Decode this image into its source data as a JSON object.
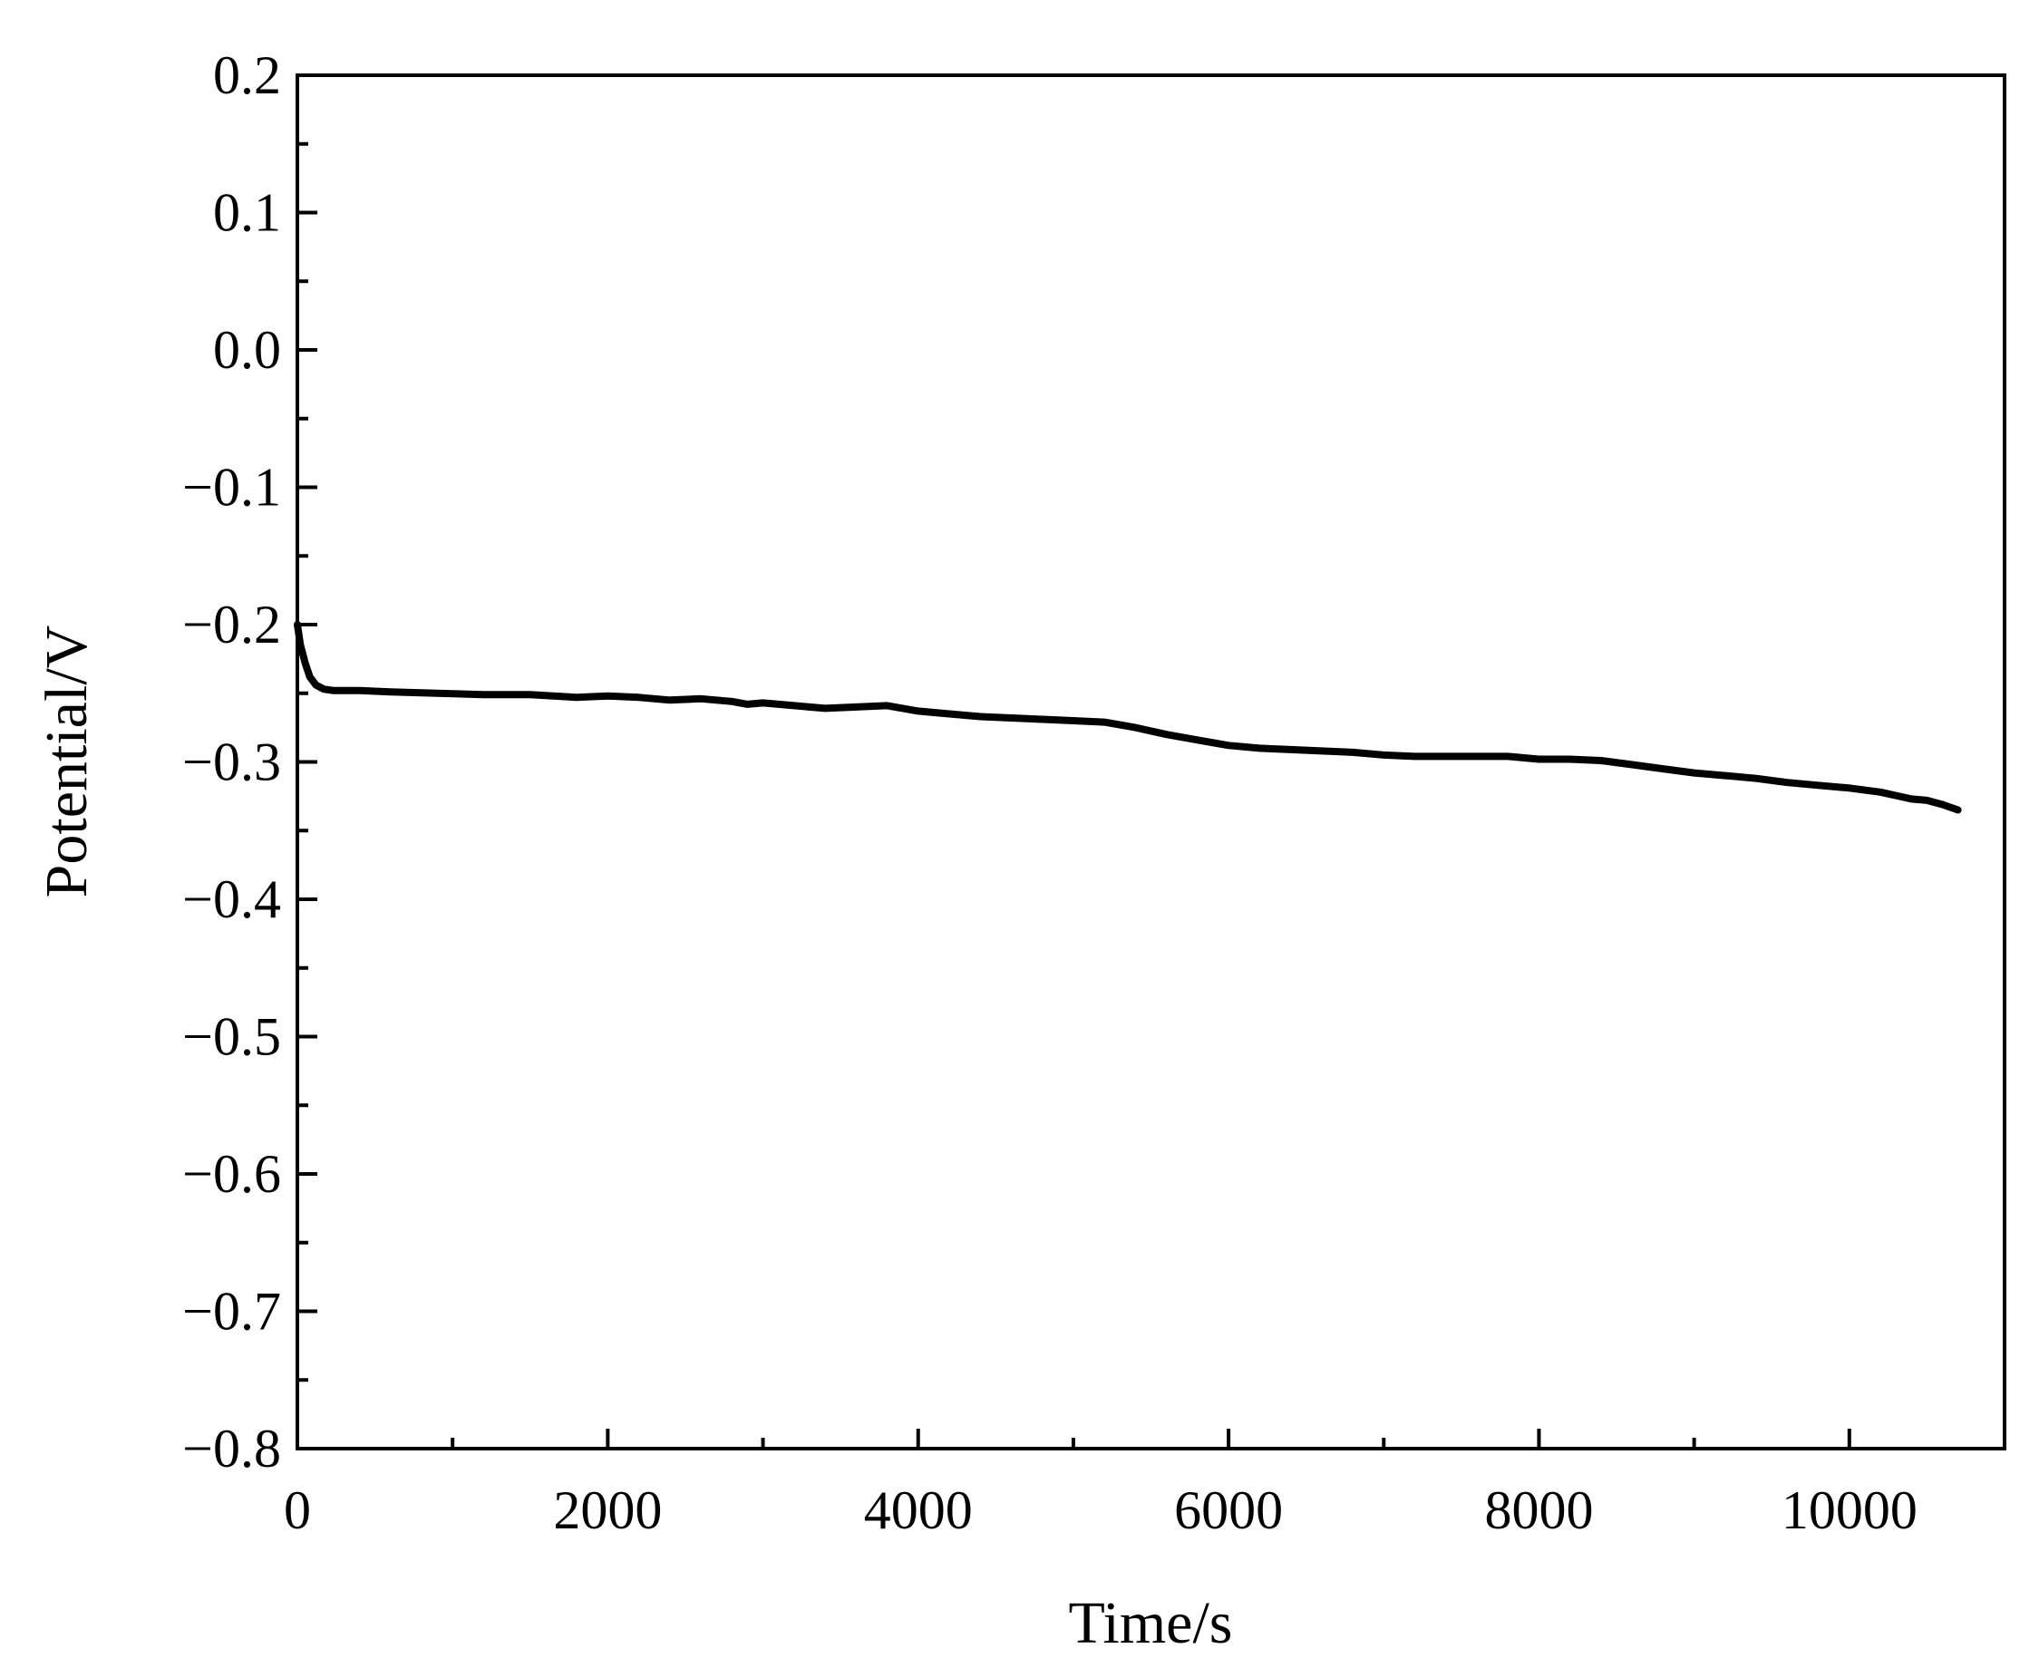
{
  "chart_data": {
    "type": "line",
    "title": "",
    "xlabel": "Time/s",
    "ylabel": "Potential/V",
    "xlim": [
      0,
      11000
    ],
    "ylim": [
      -0.8,
      0.2
    ],
    "x_ticks": [
      {
        "value": 0,
        "label": "0"
      },
      {
        "value": 2000,
        "label": "2000"
      },
      {
        "value": 4000,
        "label": "4000"
      },
      {
        "value": 6000,
        "label": "6000"
      },
      {
        "value": 8000,
        "label": "8000"
      },
      {
        "value": 10000,
        "label": "10000"
      }
    ],
    "x_minor_ticks": [
      1000,
      3000,
      5000,
      7000,
      9000
    ],
    "y_ticks": [
      {
        "value": 0.2,
        "label": "0.2"
      },
      {
        "value": 0.1,
        "label": "0.1"
      },
      {
        "value": 0.0,
        "label": "0.0"
      },
      {
        "value": -0.1,
        "label": "−0.1"
      },
      {
        "value": -0.2,
        "label": "−0.2"
      },
      {
        "value": -0.3,
        "label": "−0.3"
      },
      {
        "value": -0.4,
        "label": "−0.4"
      },
      {
        "value": -0.5,
        "label": "−0.5"
      },
      {
        "value": -0.6,
        "label": "−0.6"
      },
      {
        "value": -0.7,
        "label": "−0.7"
      },
      {
        "value": -0.8,
        "label": "−0.8"
      }
    ],
    "y_minor_ticks": [
      0.15,
      0.05,
      -0.05,
      -0.15,
      -0.25,
      -0.35,
      -0.45,
      -0.55,
      -0.65,
      -0.75
    ],
    "grid": false,
    "line_color": "#000000",
    "series": [
      {
        "name": "",
        "x": [
          0,
          20,
          50,
          80,
          120,
          170,
          230,
          300,
          400,
          600,
          900,
          1200,
          1500,
          1800,
          2000,
          2200,
          2400,
          2600,
          2800,
          2900,
          3000,
          3200,
          3400,
          3600,
          3800,
          4000,
          4200,
          4400,
          4600,
          4800,
          5000,
          5200,
          5400,
          5600,
          5800,
          6000,
          6200,
          6400,
          6600,
          6800,
          7000,
          7200,
          7400,
          7600,
          7800,
          8000,
          8200,
          8400,
          8600,
          8800,
          9000,
          9200,
          9400,
          9600,
          9800,
          10000,
          10200,
          10400,
          10500,
          10600,
          10700
        ],
        "y": [
          -0.2,
          -0.215,
          -0.228,
          -0.238,
          -0.244,
          -0.247,
          -0.248,
          -0.248,
          -0.248,
          -0.249,
          -0.25,
          -0.251,
          -0.251,
          -0.253,
          -0.252,
          -0.253,
          -0.255,
          -0.254,
          -0.256,
          -0.258,
          -0.257,
          -0.259,
          -0.261,
          -0.26,
          -0.259,
          -0.263,
          -0.265,
          -0.267,
          -0.268,
          -0.269,
          -0.27,
          -0.271,
          -0.275,
          -0.28,
          -0.284,
          -0.288,
          -0.29,
          -0.291,
          -0.292,
          -0.293,
          -0.295,
          -0.296,
          -0.296,
          -0.296,
          -0.296,
          -0.298,
          -0.298,
          -0.299,
          -0.302,
          -0.305,
          -0.308,
          -0.31,
          -0.312,
          -0.315,
          -0.317,
          -0.319,
          -0.322,
          -0.327,
          -0.328,
          -0.331,
          -0.335
        ]
      }
    ]
  }
}
